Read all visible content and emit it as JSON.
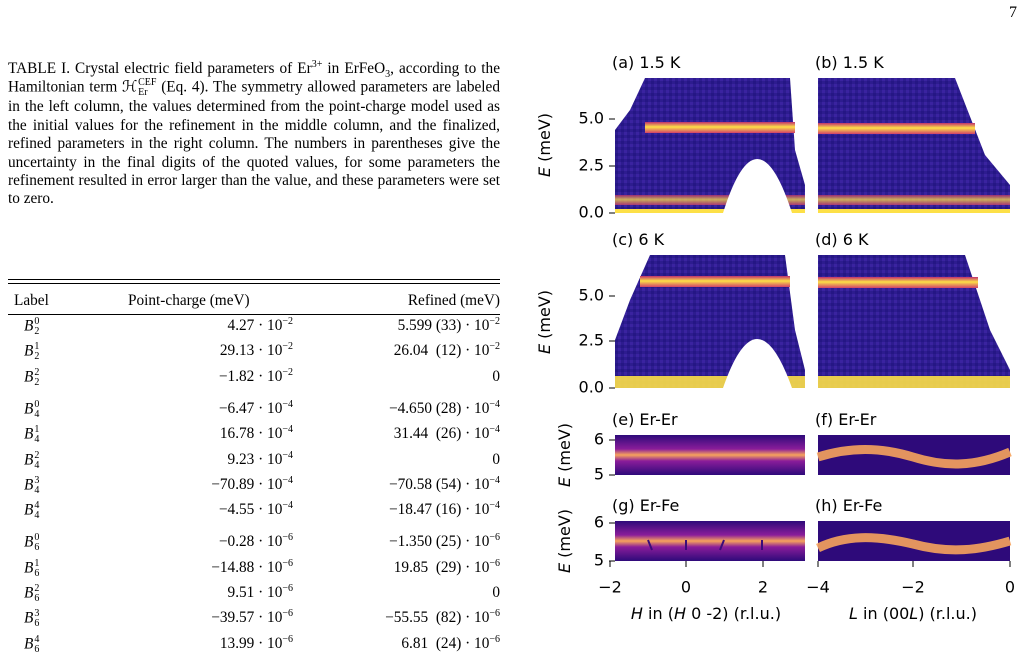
{
  "page_number": "7",
  "caption": [
    {
      "text": "TABLE I. Crystal electric field parameters of Er"
    },
    {
      "sup": "3+"
    },
    {
      "text": " in ErFeO"
    },
    {
      "sub": "3"
    },
    {
      "text": ", according to the Hamiltonian term "
    },
    {
      "text": "ℋ"
    },
    {
      "supsub": [
        "CEF",
        "Er"
      ]
    },
    {
      "text": " (Eq. 4). The symmetry allowed parameters are labeled in the left column, the values determined from the point-charge model used as the initial values for the refinement in the middle column, and the finalized, refined parameters in the right column. The numbers in parentheses give the uncertainty in the final digits of the quoted values, for some parameters the refinement resulted in error larger than the value, and these parameters were set to zero."
    }
  ],
  "table": {
    "headers": [
      "Label",
      "Point-charge (meV)",
      "Refined (meV)"
    ],
    "groups": [
      [
        {
          "label": {
            "base": "B",
            "sub": "2",
            "sup": "0"
          },
          "point_charge": {
            "mantissa": "4.27 · 10",
            "exponent": "−2"
          },
          "refined": {
            "mantissa": "5.599 (33) · 10",
            "exponent": "−2"
          }
        },
        {
          "label": {
            "base": "B",
            "sub": "2",
            "sup": "1"
          },
          "point_charge": {
            "mantissa": "29.13 · 10",
            "exponent": "−2"
          },
          "refined": {
            "mantissa": "26.04  (12) · 10",
            "exponent": "−2"
          }
        },
        {
          "label": {
            "base": "B",
            "sub": "2",
            "sup": "2"
          },
          "point_charge": {
            "mantissa": "−1.82 · 10",
            "exponent": "−2"
          },
          "refined": {
            "mantissa": "0"
          }
        }
      ],
      [
        {
          "label": {
            "base": "B",
            "sub": "4",
            "sup": "0"
          },
          "point_charge": {
            "mantissa": "−6.47 · 10",
            "exponent": "−4"
          },
          "refined": {
            "mantissa": "−4.650 (28) · 10",
            "exponent": "−4"
          }
        },
        {
          "label": {
            "base": "B",
            "sub": "4",
            "sup": "1"
          },
          "point_charge": {
            "mantissa": "16.78 · 10",
            "exponent": "−4"
          },
          "refined": {
            "mantissa": "31.44  (26) · 10",
            "exponent": "−4"
          }
        },
        {
          "label": {
            "base": "B",
            "sub": "4",
            "sup": "2"
          },
          "point_charge": {
            "mantissa": "9.23 · 10",
            "exponent": "−4"
          },
          "refined": {
            "mantissa": "0"
          }
        },
        {
          "label": {
            "base": "B",
            "sub": "4",
            "sup": "3"
          },
          "point_charge": {
            "mantissa": "−70.89 · 10",
            "exponent": "−4"
          },
          "refined": {
            "mantissa": "−70.58 (54) · 10",
            "exponent": "−4"
          }
        },
        {
          "label": {
            "base": "B",
            "sub": "4",
            "sup": "4"
          },
          "point_charge": {
            "mantissa": "−4.55 · 10",
            "exponent": "−4"
          },
          "refined": {
            "mantissa": "−18.47 (16) · 10",
            "exponent": "−4"
          }
        }
      ],
      [
        {
          "label": {
            "base": "B",
            "sub": "6",
            "sup": "0"
          },
          "point_charge": {
            "mantissa": "−0.28 · 10",
            "exponent": "−6"
          },
          "refined": {
            "mantissa": "−1.350 (25) · 10",
            "exponent": "−6"
          }
        },
        {
          "label": {
            "base": "B",
            "sub": "6",
            "sup": "1"
          },
          "point_charge": {
            "mantissa": "−14.88 · 10",
            "exponent": "−6"
          },
          "refined": {
            "mantissa": "19.85  (29) · 10",
            "exponent": "−6"
          }
        },
        {
          "label": {
            "base": "B",
            "sub": "6",
            "sup": "2"
          },
          "point_charge": {
            "mantissa": "9.51 · 10",
            "exponent": "−6"
          },
          "refined": {
            "mantissa": "0"
          }
        },
        {
          "label": {
            "base": "B",
            "sub": "6",
            "sup": "3"
          },
          "point_charge": {
            "mantissa": "−39.57 · 10",
            "exponent": "−6"
          },
          "refined": {
            "mantissa": "−55.55  (82) · 10",
            "exponent": "−6"
          }
        },
        {
          "label": {
            "base": "B",
            "sub": "6",
            "sup": "4"
          },
          "point_charge": {
            "mantissa": "13.99 · 10",
            "exponent": "−6"
          },
          "refined": {
            "mantissa": "6.81  (24) · 10",
            "exponent": "−6"
          }
        }
      ]
    ]
  },
  "figure": {
    "panels": [
      "(a) 1.5 K",
      "(b) 1.5 K",
      "(c) 6 K",
      "(d) 6 K",
      "(e) Er-Er",
      "(f) Er-Er",
      "(g) Er-Fe",
      "(h) Er-Fe"
    ],
    "ylabel": {
      "italic": "E",
      "text": " (meV)"
    },
    "yticks_measured": [
      "0.0",
      "2.5",
      "5.0"
    ],
    "yticks_calc": [
      "5",
      "6"
    ],
    "xticks_h": [
      "−2",
      "0",
      "2"
    ],
    "xticks_l": [
      "−4",
      "−2",
      "0"
    ],
    "xlabel_h": {
      "italic": "H",
      "text": " in (",
      "italic2": "H",
      "text2": " 0 -2) (r.l.u.)"
    },
    "xlabel_l": {
      "italic": "L",
      "text": " in (00",
      "italic2": "L",
      "text2": ") (r.l.u.)"
    }
  }
}
